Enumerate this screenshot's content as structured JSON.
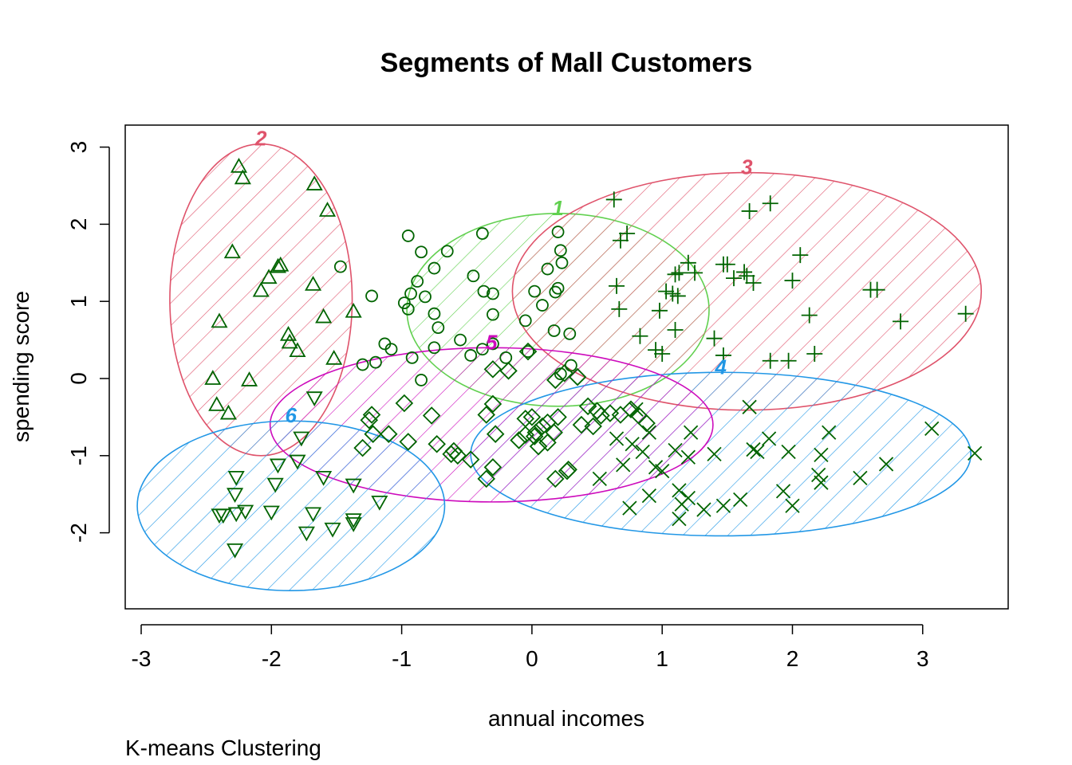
{
  "chart_data": {
    "type": "scatter",
    "title": "Segments of Mall Customers",
    "xlabel": "annual incomes",
    "ylabel": "spending score",
    "subtitle": "K-means Clustering",
    "xlim": [
      -3.0,
      3.5
    ],
    "ylim": [
      -2.8,
      3.2
    ],
    "xticks": [
      -3,
      -2,
      -1,
      0,
      1,
      2,
      3
    ],
    "yticks": [
      -2,
      -1,
      0,
      1,
      2,
      3
    ],
    "grid": false,
    "legend": "none",
    "point_color": "#006400",
    "clusters": [
      {
        "label": "1",
        "color": "#61D04F",
        "marker": "circle",
        "ellipse": {
          "cx": 0.2,
          "cy": 0.89,
          "rx": 1.16,
          "ry": 1.25
        },
        "points": [
          [
            -0.95,
            1.85
          ],
          [
            -0.38,
            1.88
          ],
          [
            -0.85,
            1.64
          ],
          [
            -0.65,
            1.65
          ],
          [
            0.2,
            1.9
          ],
          [
            0.22,
            1.66
          ],
          [
            -1.47,
            1.45
          ],
          [
            -0.75,
            1.43
          ],
          [
            -0.93,
            1.1
          ],
          [
            -0.88,
            1.26
          ],
          [
            -0.45,
            1.33
          ],
          [
            -0.37,
            1.13
          ],
          [
            0.23,
            1.5
          ],
          [
            0.12,
            1.42
          ],
          [
            -1.23,
            1.07
          ],
          [
            -0.98,
            0.98
          ],
          [
            -0.95,
            0.9
          ],
          [
            -0.82,
            1.06
          ],
          [
            -0.3,
            1.1
          ],
          [
            0.02,
            1.13
          ],
          [
            0.2,
            1.17
          ],
          [
            0.18,
            1.12
          ],
          [
            0.08,
            0.95
          ],
          [
            -0.75,
            0.84
          ],
          [
            -0.72,
            0.66
          ],
          [
            -0.3,
            0.83
          ],
          [
            -0.05,
            0.75
          ],
          [
            0.17,
            0.62
          ],
          [
            0.29,
            0.58
          ],
          [
            -1.13,
            0.45
          ],
          [
            -1.08,
            0.38
          ],
          [
            -0.75,
            0.4
          ],
          [
            -0.55,
            0.5
          ],
          [
            -0.38,
            0.38
          ],
          [
            -0.3,
            0.45
          ],
          [
            -0.92,
            0.27
          ],
          [
            -0.47,
            0.3
          ],
          [
            -1.3,
            0.18
          ],
          [
            -1.2,
            0.21
          ],
          [
            -0.2,
            0.27
          ],
          [
            -0.85,
            -0.02
          ],
          [
            -0.03,
            0.35
          ],
          [
            0.3,
            0.17
          ],
          [
            0.22,
            0.06
          ]
        ]
      },
      {
        "label": "2",
        "color": "#DF536B",
        "marker": "triangle",
        "ellipse": {
          "cx": -2.08,
          "cy": 1.02,
          "rx": 0.7,
          "ry": 2.02
        },
        "points": [
          [
            -2.25,
            2.75
          ],
          [
            -2.22,
            2.6
          ],
          [
            -1.67,
            2.52
          ],
          [
            -1.57,
            2.18
          ],
          [
            -2.3,
            1.64
          ],
          [
            -1.93,
            1.47
          ],
          [
            -1.95,
            1.45
          ],
          [
            -2.02,
            1.31
          ],
          [
            -2.08,
            1.14
          ],
          [
            -1.68,
            1.22
          ],
          [
            -1.6,
            0.8
          ],
          [
            -1.37,
            0.87
          ],
          [
            -2.4,
            0.74
          ],
          [
            -1.87,
            0.57
          ],
          [
            -1.86,
            0.47
          ],
          [
            -1.8,
            0.36
          ],
          [
            -1.52,
            0.26
          ],
          [
            -2.45,
            0.0
          ],
          [
            -2.17,
            -0.02
          ],
          [
            -2.42,
            -0.34
          ],
          [
            -2.33,
            -0.45
          ]
        ]
      },
      {
        "label": "3",
        "color": "#DF536B",
        "marker": "plus",
        "ellipse": {
          "cx": 1.65,
          "cy": 1.13,
          "rx": 1.8,
          "ry": 1.54
        },
        "points": [
          [
            0.63,
            2.32
          ],
          [
            0.68,
            1.79
          ],
          [
            0.73,
            1.88
          ],
          [
            1.67,
            2.17
          ],
          [
            1.83,
            2.27
          ],
          [
            2.06,
            1.6
          ],
          [
            1.2,
            1.5
          ],
          [
            1.25,
            1.37
          ],
          [
            1.13,
            1.37
          ],
          [
            1.47,
            1.48
          ],
          [
            1.5,
            1.48
          ],
          [
            1.55,
            1.3
          ],
          [
            1.65,
            1.33
          ],
          [
            1.7,
            1.24
          ],
          [
            1.63,
            1.38
          ],
          [
            2.0,
            1.27
          ],
          [
            0.65,
            1.2
          ],
          [
            0.67,
            0.9
          ],
          [
            1.03,
            1.13
          ],
          [
            1.08,
            1.1
          ],
          [
            1.12,
            1.07
          ],
          [
            0.98,
            0.88
          ],
          [
            1.1,
            0.63
          ],
          [
            2.13,
            0.82
          ],
          [
            2.6,
            1.15
          ],
          [
            2.65,
            1.15
          ],
          [
            2.83,
            0.74
          ],
          [
            3.33,
            0.84
          ],
          [
            0.83,
            0.55
          ],
          [
            0.95,
            0.37
          ],
          [
            1.0,
            0.32
          ],
          [
            1.4,
            0.52
          ],
          [
            1.47,
            0.3
          ],
          [
            1.83,
            0.23
          ],
          [
            1.97,
            0.23
          ],
          [
            2.17,
            0.32
          ],
          [
            1.1,
            1.35
          ]
        ]
      },
      {
        "label": "4",
        "color": "#2297E6",
        "marker": "x",
        "ellipse": {
          "cx": 1.45,
          "cy": -0.98,
          "rx": 1.92,
          "ry": 1.06
        },
        "points": [
          [
            1.67,
            -0.37
          ],
          [
            0.65,
            -0.78
          ],
          [
            0.77,
            -0.85
          ],
          [
            0.85,
            -0.95
          ],
          [
            0.7,
            -1.12
          ],
          [
            0.95,
            -1.15
          ],
          [
            1.0,
            -1.2
          ],
          [
            1.1,
            -0.93
          ],
          [
            1.2,
            -1.02
          ],
          [
            1.22,
            -0.7
          ],
          [
            1.4,
            -0.98
          ],
          [
            1.7,
            -0.92
          ],
          [
            1.73,
            -0.95
          ],
          [
            1.82,
            -0.78
          ],
          [
            1.97,
            -0.95
          ],
          [
            2.22,
            -0.99
          ],
          [
            2.28,
            -0.7
          ],
          [
            2.2,
            -1.25
          ],
          [
            2.22,
            -1.35
          ],
          [
            1.93,
            -1.46
          ],
          [
            2.0,
            -1.65
          ],
          [
            1.6,
            -1.57
          ],
          [
            1.47,
            -1.65
          ],
          [
            1.32,
            -1.7
          ],
          [
            1.2,
            -1.55
          ],
          [
            1.13,
            -1.45
          ],
          [
            1.15,
            -1.63
          ],
          [
            1.13,
            -1.82
          ],
          [
            0.9,
            -1.52
          ],
          [
            0.75,
            -1.68
          ],
          [
            2.52,
            -1.29
          ],
          [
            2.72,
            -1.11
          ],
          [
            3.07,
            -0.65
          ],
          [
            3.4,
            -0.97
          ],
          [
            0.52,
            -1.3
          ],
          [
            0.9,
            -0.7
          ],
          [
            0.8,
            -0.4
          ]
        ]
      },
      {
        "label": "5",
        "color": "#CD0BBC",
        "marker": "diamond",
        "ellipse": {
          "cx": -0.31,
          "cy": -0.6,
          "rx": 1.7,
          "ry": 1.0
        },
        "points": [
          [
            -0.03,
            0.35
          ],
          [
            -0.3,
            0.12
          ],
          [
            -0.18,
            0.1
          ],
          [
            -0.3,
            -0.33
          ],
          [
            -0.35,
            -0.47
          ],
          [
            -0.28,
            -0.72
          ],
          [
            -0.05,
            -0.52
          ],
          [
            0.0,
            -0.5
          ],
          [
            0.08,
            -0.62
          ],
          [
            0.12,
            -0.57
          ],
          [
            0.2,
            -0.5
          ],
          [
            0.17,
            -0.7
          ],
          [
            -0.05,
            -0.73
          ],
          [
            0.05,
            -0.88
          ],
          [
            0.12,
            -0.83
          ],
          [
            0.02,
            -0.75
          ],
          [
            0.18,
            -0.02
          ],
          [
            0.25,
            0.07
          ],
          [
            0.35,
            0.02
          ],
          [
            0.43,
            -0.36
          ],
          [
            0.5,
            -0.42
          ],
          [
            0.53,
            -0.48
          ],
          [
            0.6,
            -0.45
          ],
          [
            0.68,
            -0.47
          ],
          [
            0.47,
            -0.62
          ],
          [
            0.38,
            -0.6
          ],
          [
            0.76,
            -0.4
          ],
          [
            0.82,
            -0.48
          ],
          [
            0.88,
            -0.58
          ],
          [
            -1.23,
            -0.47
          ],
          [
            -1.25,
            -0.54
          ],
          [
            -1.1,
            -0.72
          ],
          [
            -1.22,
            -0.72
          ],
          [
            -1.3,
            -0.9
          ],
          [
            -0.95,
            -0.82
          ],
          [
            -0.98,
            -0.32
          ],
          [
            -0.77,
            -0.48
          ],
          [
            -0.73,
            -0.85
          ],
          [
            -0.57,
            -1.0
          ],
          [
            -0.62,
            -0.98
          ],
          [
            -0.6,
            -0.94
          ],
          [
            -0.47,
            -1.05
          ],
          [
            -0.35,
            -1.3
          ],
          [
            -0.3,
            -1.15
          ],
          [
            0.18,
            -1.3
          ],
          [
            0.27,
            -1.2
          ],
          [
            0.28,
            -1.18
          ],
          [
            -0.1,
            -0.8
          ],
          [
            0.03,
            -0.7
          ]
        ]
      },
      {
        "label": "6",
        "color": "#2297E6",
        "marker": "triangle-down",
        "ellipse": {
          "cx": -1.85,
          "cy": -1.65,
          "rx": 1.18,
          "ry": 1.1
        },
        "points": [
          [
            -1.67,
            -0.25
          ],
          [
            -1.77,
            -0.77
          ],
          [
            -1.95,
            -1.12
          ],
          [
            -1.8,
            -1.07
          ],
          [
            -2.27,
            -1.28
          ],
          [
            -2.28,
            -1.5
          ],
          [
            -1.97,
            -1.37
          ],
          [
            -1.6,
            -1.28
          ],
          [
            -1.37,
            -1.38
          ],
          [
            -2.37,
            -1.77
          ],
          [
            -2.4,
            -1.77
          ],
          [
            -2.27,
            -1.75
          ],
          [
            -2.2,
            -1.72
          ],
          [
            -2.0,
            -1.73
          ],
          [
            -1.68,
            -1.75
          ],
          [
            -1.73,
            -2.0
          ],
          [
            -1.53,
            -1.95
          ],
          [
            -1.37,
            -1.83
          ],
          [
            -1.37,
            -1.88
          ],
          [
            -1.17,
            -1.6
          ],
          [
            -2.28,
            -2.22
          ]
        ]
      }
    ]
  }
}
